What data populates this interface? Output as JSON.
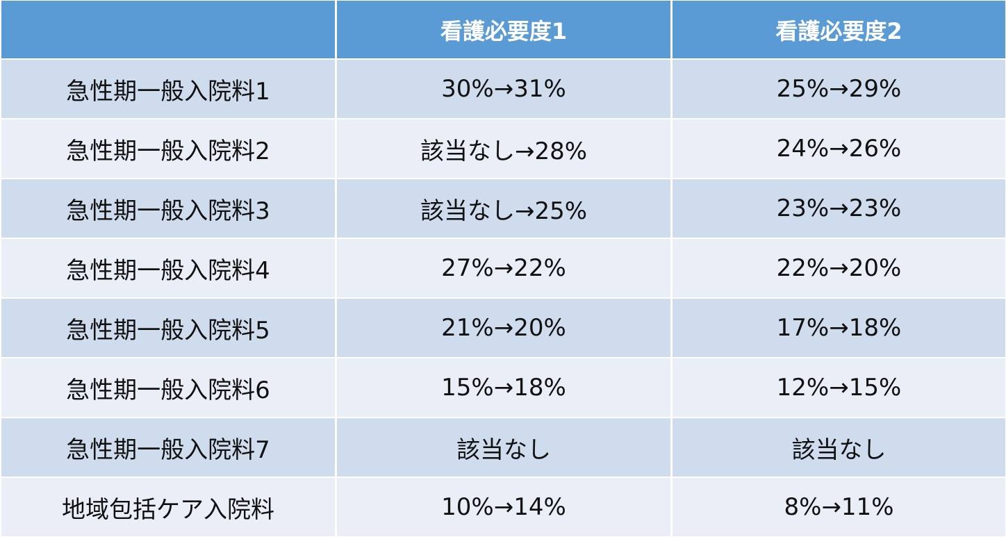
{
  "table": {
    "headers": [
      "",
      "看護必要度1",
      "看護必要度2"
    ],
    "rows": [
      [
        "急性期一般入院料1",
        "30%→31%",
        "25%→29%"
      ],
      [
        "急性期一般入院料2",
        "該当なし→28%",
        "24%→26%"
      ],
      [
        "急性期一般入院料3",
        "該当なし→25%",
        "23%→23%"
      ],
      [
        "急性期一般入院料4",
        "27%→22%",
        "22%→20%"
      ],
      [
        "急性期一般入院料5",
        "21%→20%",
        "17%→18%"
      ],
      [
        "急性期一般入院料6",
        "15%→18%",
        "12%→15%"
      ],
      [
        "急性期一般入院料7",
        "該当なし",
        "該当なし"
      ],
      [
        "地域包括ケア入院料",
        "10%→14%",
        "8%→11%"
      ]
    ]
  },
  "colors": {
    "header_bg": "#5b9bd5",
    "row_dark_bg": "#cfdcee",
    "row_light_bg": "#e9eef7",
    "header_text": "#ffffff",
    "body_text": "#111111"
  }
}
